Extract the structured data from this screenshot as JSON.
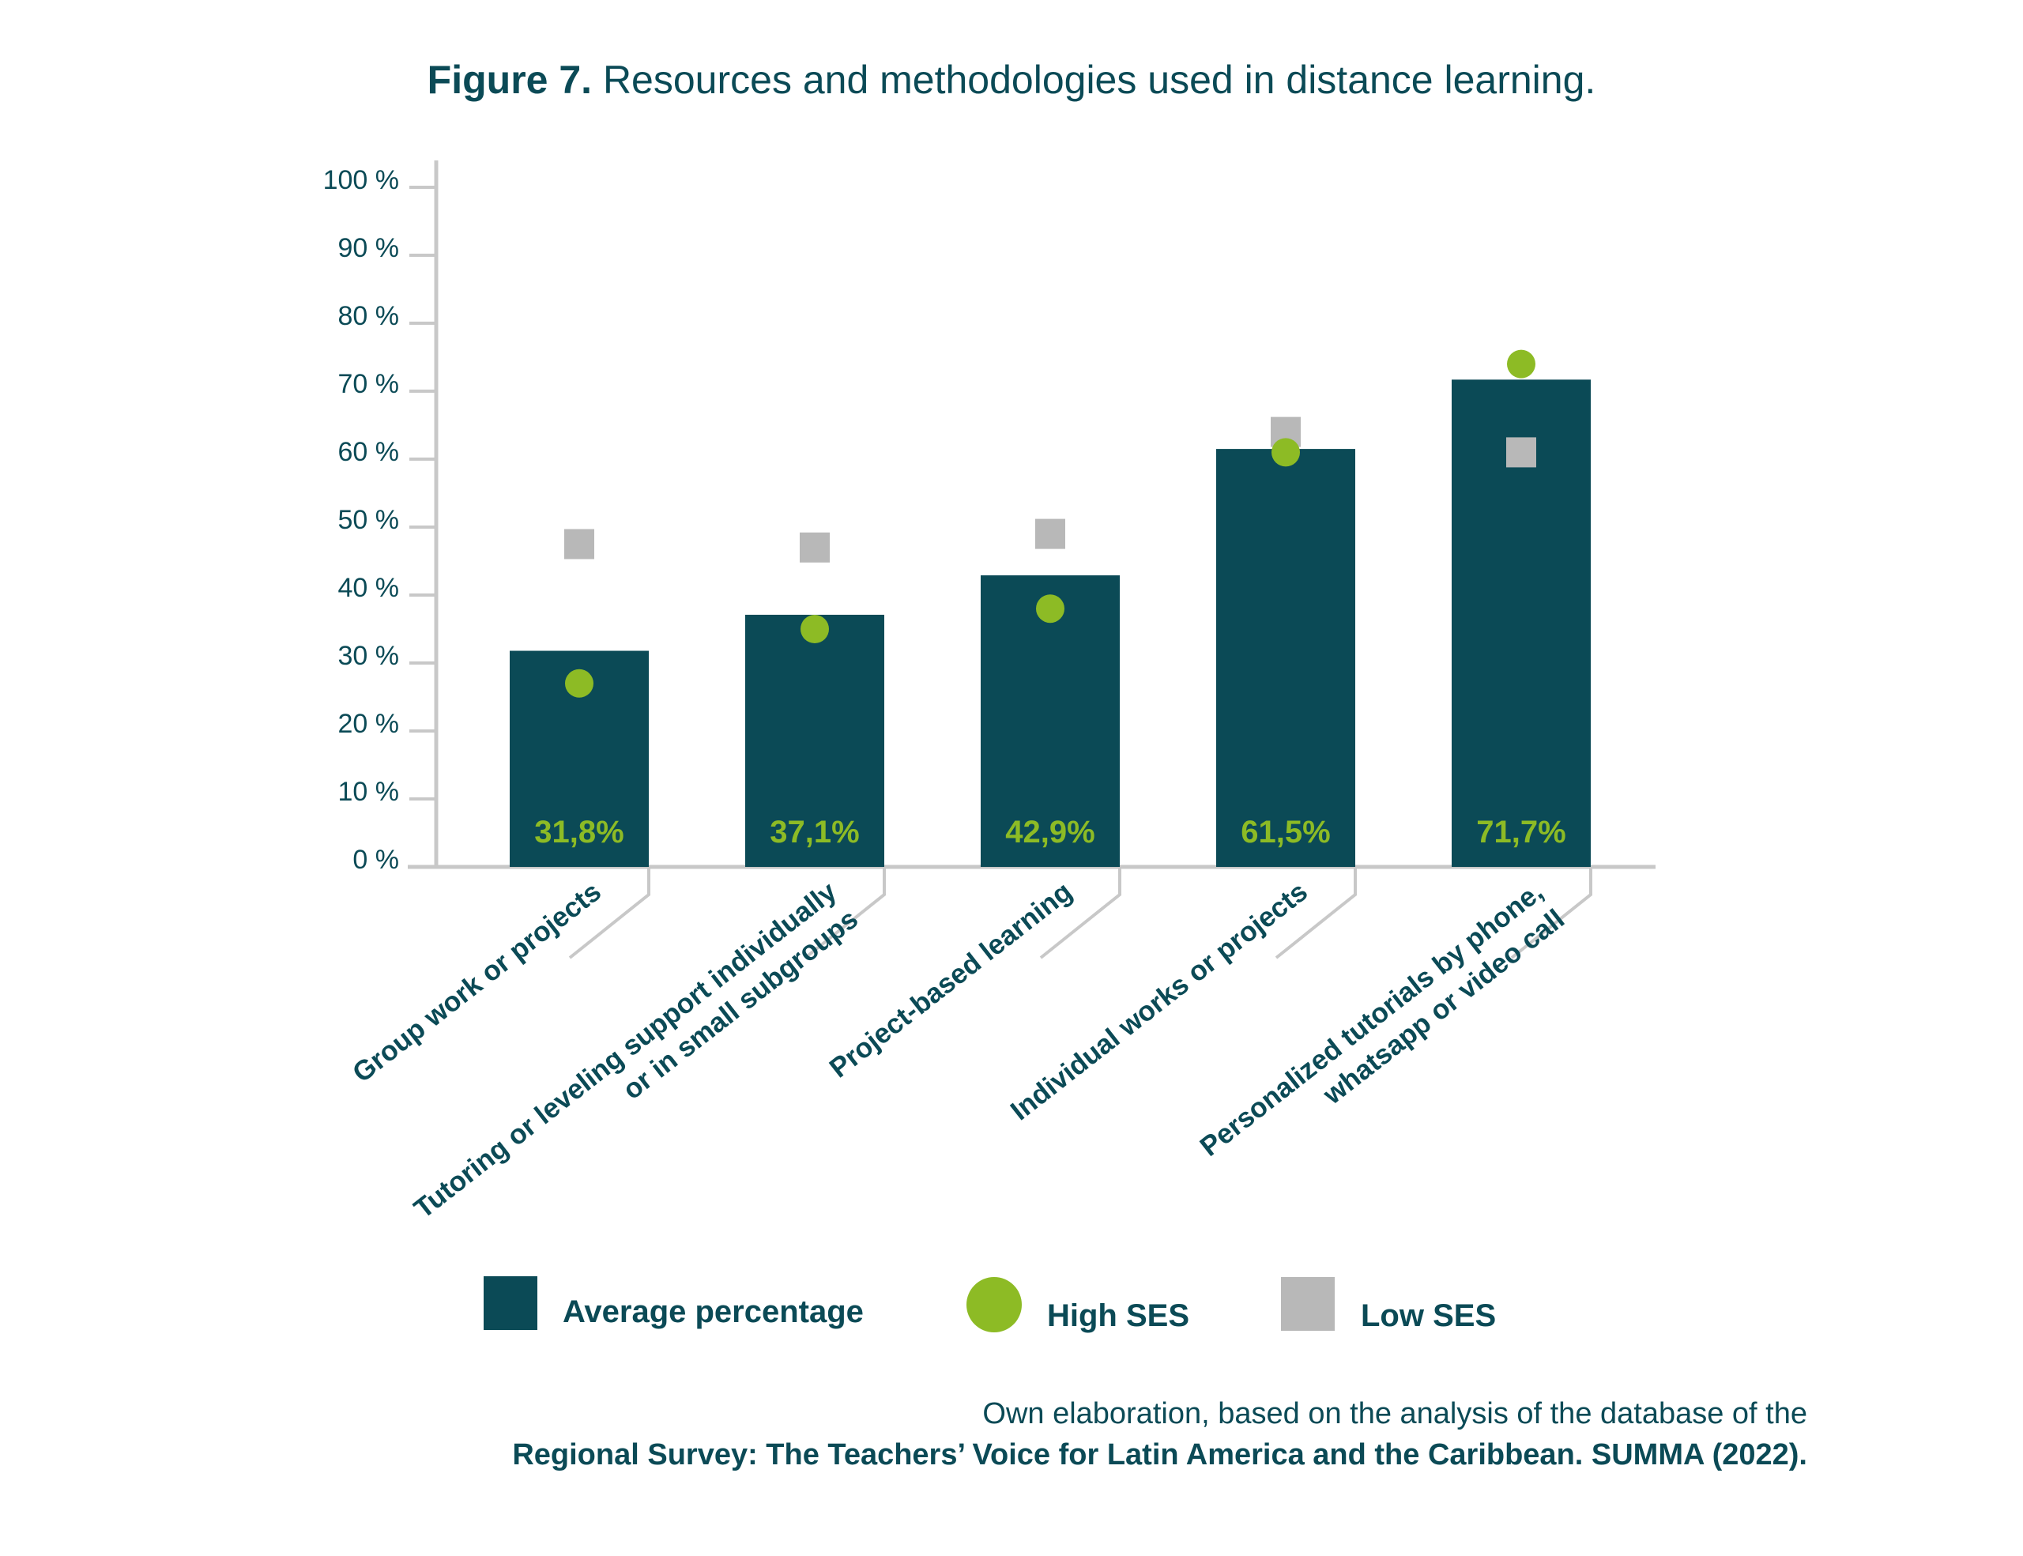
{
  "title": {
    "bold": "Figure 7.",
    "text": "Resources and methodologies used in distance learning."
  },
  "colors": {
    "bar": "#0b4a56",
    "high": "#8dbb25",
    "low": "#b8b8b8",
    "axis": "#c8c8c8",
    "text": "#0b4a56"
  },
  "chart_data": {
    "type": "bar",
    "categories": [
      [
        "Group work or projects"
      ],
      [
        "Tutoring or leveling support individually",
        "or in small subgroups"
      ],
      [
        "Project-based learning"
      ],
      [
        "Individual works or projects"
      ],
      [
        "Personalized tutorials by phone,",
        "whatsapp or video call"
      ]
    ],
    "value_labels": [
      "31,8%",
      "37,1%",
      "42,9%",
      "61,5%",
      "71,7%"
    ],
    "series": [
      {
        "name": "Average percentage",
        "type": "bar",
        "values": [
          31.8,
          37.1,
          42.9,
          61.5,
          71.7
        ]
      },
      {
        "name": "High SES",
        "type": "scatter",
        "marker": "circle",
        "values": [
          27,
          35,
          38,
          61,
          74
        ]
      },
      {
        "name": "Low SES",
        "type": "scatter",
        "marker": "square",
        "values": [
          47.5,
          47,
          49,
          64,
          61
        ]
      }
    ],
    "ylim": [
      0,
      100
    ],
    "yticks": [
      "0 %",
      "10 %",
      "20 %",
      "30 %",
      "40 %",
      "50 %",
      "60 %",
      "70 %",
      "80 %",
      "90 %",
      "100 %"
    ],
    "legend_position": "bottom"
  },
  "source": {
    "line1": "Own elaboration, based on the analysis of the database of the",
    "line2": "Regional Survey: The Teachers’ Voice for Latin America and the Caribbean. SUMMA (2022)."
  }
}
